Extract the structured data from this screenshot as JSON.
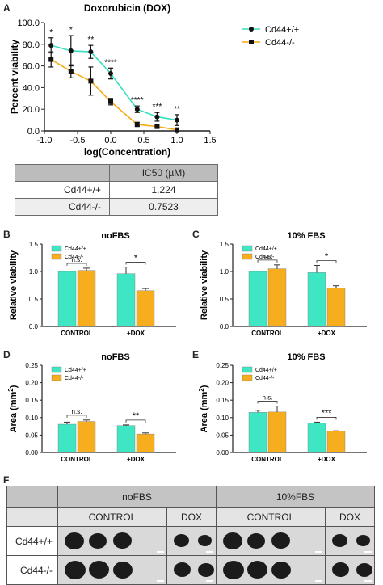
{
  "panel_labels": {
    "a": "A",
    "b": "B",
    "c": "C",
    "d": "D",
    "e": "E",
    "f": "F"
  },
  "colors": {
    "wt": "#3fe6c3",
    "ko": "#f7ae1e",
    "wt_line": "#35e0bf",
    "ko_line": "#f5aa10"
  },
  "chart_data": [
    {
      "panel": "A",
      "type": "line",
      "title": "Doxorubicin (DOX)",
      "xlabel": "log(Concentration)",
      "ylabel": "Percent viability",
      "xlim": [
        -1.0,
        1.5
      ],
      "ylim": [
        0,
        100
      ],
      "xticks": [
        "-1.0",
        "-0.5",
        "0.0",
        "0.5",
        "1.0",
        "1.5"
      ],
      "yticks": [
        "0.0",
        "20.0",
        "40.0",
        "60.0",
        "80.0",
        "100.0"
      ],
      "legend_position": "top-right",
      "x": [
        -0.9,
        -0.6,
        -0.3,
        0.0,
        0.4,
        0.7,
        1.0
      ],
      "series": [
        {
          "name": "Cd44+/+",
          "values": [
            79,
            74,
            73,
            53,
            20,
            13,
            10
          ],
          "errors": [
            7,
            14,
            6,
            5,
            3,
            4,
            5
          ]
        },
        {
          "name": "Cd44-/-",
          "values": [
            66,
            55,
            46,
            27,
            6,
            4,
            1
          ],
          "errors": [
            7,
            6,
            13,
            3,
            2,
            1,
            1
          ]
        }
      ],
      "significance": [
        "*",
        "*",
        "**",
        "****",
        "****",
        "***",
        "**"
      ]
    },
    {
      "panel": "B",
      "type": "bar",
      "title": "noFBS",
      "ylabel": "Relative viability",
      "categories": [
        "CONTROL",
        "+DOX"
      ],
      "ylim": [
        0,
        1.5
      ],
      "yticks": [
        "0.0",
        "0.5",
        "1.0",
        "1.5"
      ],
      "series": [
        {
          "name": "Cd44+/+",
          "values": [
            1.0,
            0.96
          ],
          "errors": [
            0,
            0.12
          ]
        },
        {
          "name": "Cd44-/-",
          "values": [
            1.02,
            0.65
          ],
          "errors": [
            0.04,
            0.04
          ]
        }
      ],
      "significance": [
        "n.s.",
        "*"
      ]
    },
    {
      "panel": "C",
      "type": "bar",
      "title": "10% FBS",
      "ylabel": "Relative viability",
      "categories": [
        "CONTROL",
        "+DOX"
      ],
      "ylim": [
        0,
        1.5
      ],
      "yticks": [
        "0.0",
        "0.5",
        "1.0",
        "1.5"
      ],
      "series": [
        {
          "name": "Cd44+/+",
          "values": [
            1.0,
            0.98
          ],
          "errors": [
            0,
            0.13
          ]
        },
        {
          "name": "Cd44-/-",
          "values": [
            1.05,
            0.7
          ],
          "errors": [
            0.07,
            0.04
          ]
        }
      ],
      "significance": [
        "n.s.",
        "*"
      ]
    },
    {
      "panel": "D",
      "type": "bar",
      "title": "noFBS",
      "ylabel": "Area (mm",
      "ylabel_sup": "2",
      "ylabel_end": ")",
      "categories": [
        "CONTROL",
        "+DOX"
      ],
      "ylim": [
        0,
        0.25
      ],
      "yticks": [
        "0.00",
        "0.05",
        "0.10",
        "0.15",
        "0.20",
        "0.25"
      ],
      "series": [
        {
          "name": "Cd44+/+",
          "values": [
            0.081,
            0.077
          ],
          "errors": [
            0.006,
            0.002
          ]
        },
        {
          "name": "Cd44-/-",
          "values": [
            0.089,
            0.053
          ],
          "errors": [
            0.004,
            0.003
          ]
        }
      ],
      "significance": [
        "n.s.",
        "**"
      ]
    },
    {
      "panel": "E",
      "type": "bar",
      "title": "10% FBS",
      "ylabel": "Area (mm",
      "ylabel_sup": "2",
      "ylabel_end": ")",
      "categories": [
        "CONTROL",
        "+DOX"
      ],
      "ylim": [
        0,
        0.25
      ],
      "yticks": [
        "0.00",
        "0.05",
        "0.10",
        "0.15",
        "0.20",
        "0.25"
      ],
      "series": [
        {
          "name": "Cd44+/+",
          "values": [
            0.115,
            0.085
          ],
          "errors": [
            0.006,
            0.002
          ]
        },
        {
          "name": "Cd44-/-",
          "values": [
            0.116,
            0.061
          ],
          "errors": [
            0.017,
            0.001
          ]
        }
      ],
      "significance": [
        "n.s.",
        "***"
      ]
    }
  ],
  "ic50_table": {
    "header": "IC50 (µM)",
    "rows": [
      {
        "label": "Cd44+/+",
        "value": "1.224"
      },
      {
        "label": "Cd44-/-",
        "value": "0.7523"
      }
    ]
  },
  "photo_table": {
    "groups": [
      "noFBS",
      "10%FBS"
    ],
    "conditions": [
      "CONTROL",
      "DOX",
      "CONTROL",
      "DOX"
    ],
    "rows": [
      "Cd44+/+",
      "Cd44-/-"
    ]
  }
}
